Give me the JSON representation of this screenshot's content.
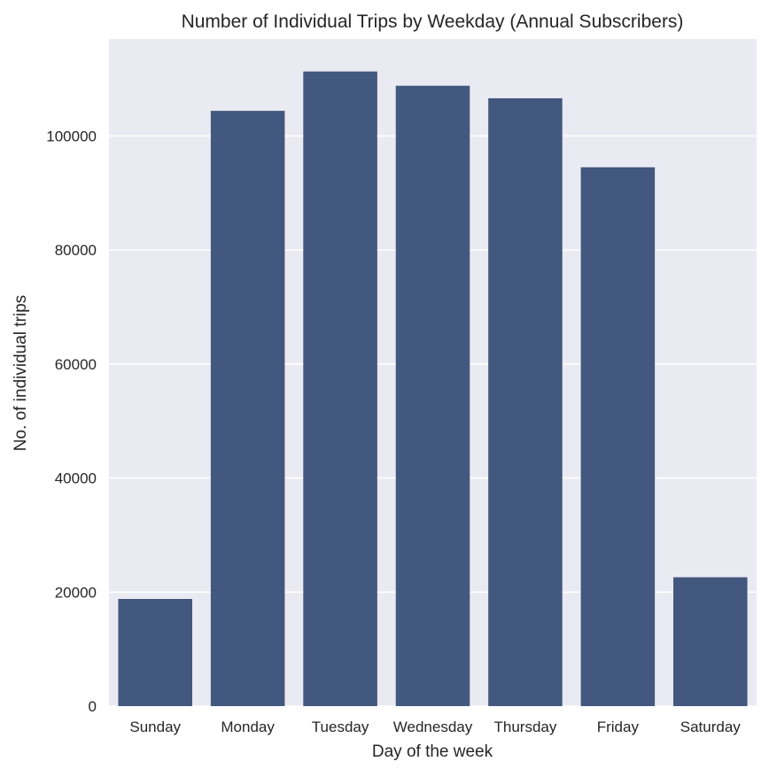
{
  "chart_data": {
    "type": "bar",
    "title": "Number of Individual Trips by Weekday (Annual Subscribers)",
    "xlabel": "Day of the week",
    "ylabel": "No. of individual trips",
    "categories": [
      "Sunday",
      "Monday",
      "Tuesday",
      "Wednesday",
      "Thursday",
      "Friday",
      "Saturday"
    ],
    "values": [
      18800,
      104400,
      111300,
      108800,
      106600,
      94500,
      22600
    ],
    "ylim": [
      0,
      117000
    ],
    "yticks": [
      0,
      20000,
      40000,
      60000,
      80000,
      100000
    ],
    "ytick_labels": [
      "0",
      "20000",
      "40000",
      "60000",
      "80000",
      "100000"
    ],
    "grid": true,
    "colors": {
      "bar": "#43587f",
      "plot_background": "#eaeaf2",
      "grid": "#ffffff"
    }
  }
}
